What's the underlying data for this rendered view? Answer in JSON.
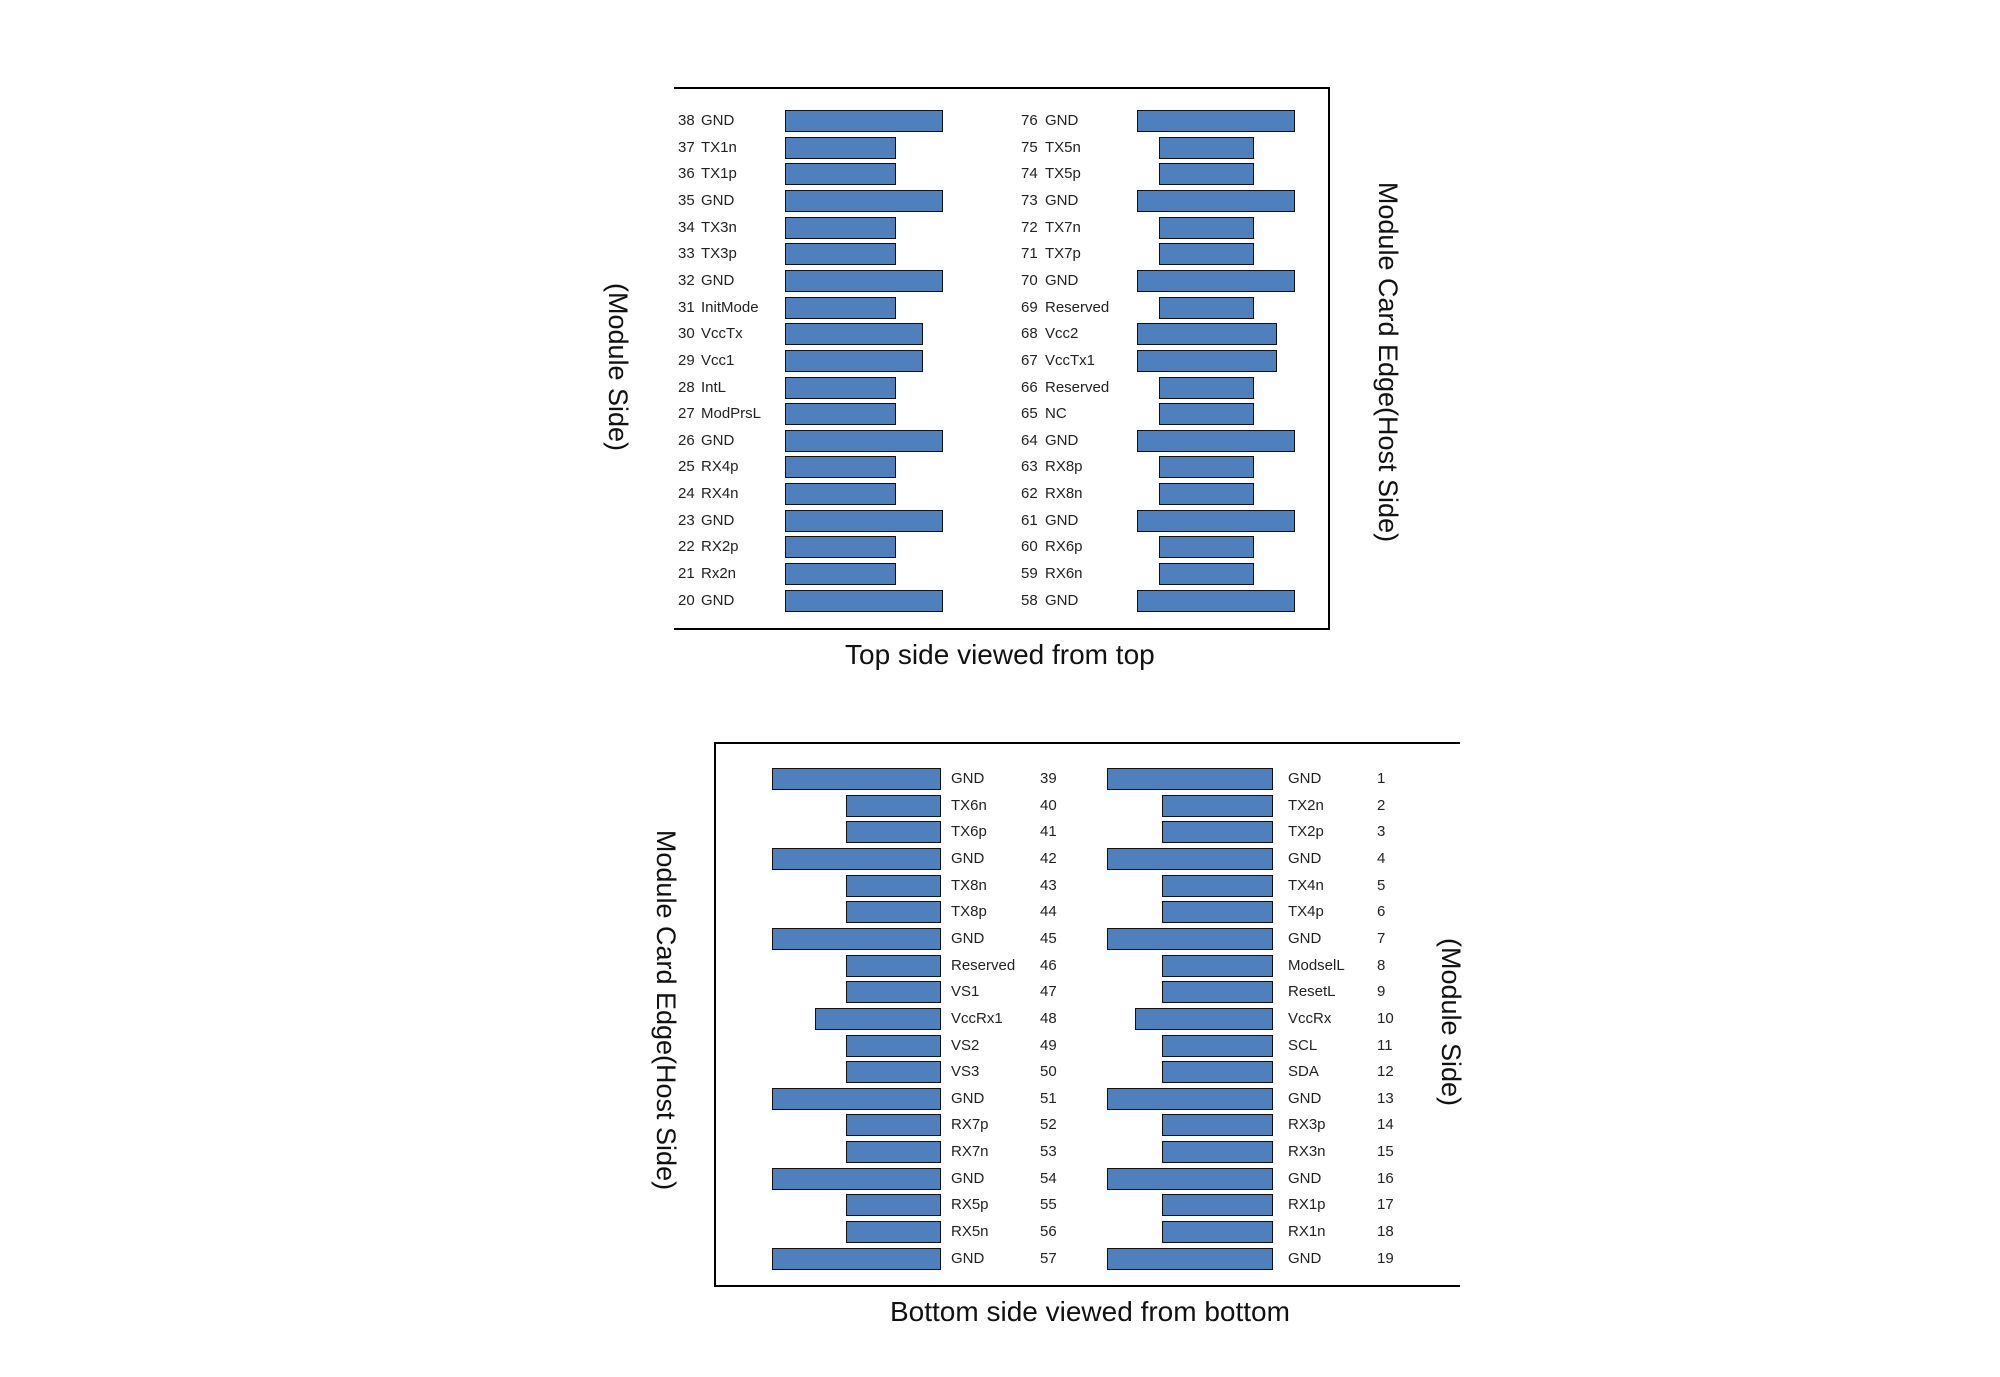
{
  "top": {
    "caption": "Top side viewed from top",
    "left_label": "(Module Side)",
    "right_label": "Module Card Edge(Host Side)",
    "left_pins": [
      {
        "num": "38",
        "name": "GND",
        "type": "long"
      },
      {
        "num": "37",
        "name": "TX1n",
        "type": "short"
      },
      {
        "num": "36",
        "name": "TX1p",
        "type": "short"
      },
      {
        "num": "35",
        "name": "GND",
        "type": "long"
      },
      {
        "num": "34",
        "name": "TX3n",
        "type": "short"
      },
      {
        "num": "33",
        "name": "TX3p",
        "type": "short"
      },
      {
        "num": "32",
        "name": "GND",
        "type": "long"
      },
      {
        "num": "31",
        "name": "InitMode",
        "type": "short"
      },
      {
        "num": "30",
        "name": "VccTx",
        "type": "mid"
      },
      {
        "num": "29",
        "name": "Vcc1",
        "type": "mid"
      },
      {
        "num": "28",
        "name": "IntL",
        "type": "short"
      },
      {
        "num": "27",
        "name": "ModPrsL",
        "type": "short"
      },
      {
        "num": "26",
        "name": "GND",
        "type": "long"
      },
      {
        "num": "25",
        "name": "RX4p",
        "type": "short"
      },
      {
        "num": "24",
        "name": "RX4n",
        "type": "short"
      },
      {
        "num": "23",
        "name": "GND",
        "type": "long"
      },
      {
        "num": "22",
        "name": "RX2p",
        "type": "short"
      },
      {
        "num": "21",
        "name": "Rx2n",
        "type": "short"
      },
      {
        "num": "20",
        "name": "GND",
        "type": "long"
      }
    ],
    "right_pins": [
      {
        "num": "76",
        "name": "GND",
        "type": "long"
      },
      {
        "num": "75",
        "name": "TX5n",
        "type": "short"
      },
      {
        "num": "74",
        "name": "TX5p",
        "type": "short"
      },
      {
        "num": "73",
        "name": "GND",
        "type": "long"
      },
      {
        "num": "72",
        "name": "TX7n",
        "type": "short"
      },
      {
        "num": "71",
        "name": "TX7p",
        "type": "short"
      },
      {
        "num": "70",
        "name": "GND",
        "type": "long"
      },
      {
        "num": "69",
        "name": "Reserved",
        "type": "short"
      },
      {
        "num": "68",
        "name": "Vcc2",
        "type": "mid"
      },
      {
        "num": "67",
        "name": "VccTx1",
        "type": "mid"
      },
      {
        "num": "66",
        "name": "Reserved",
        "type": "short"
      },
      {
        "num": "65",
        "name": "NC",
        "type": "short"
      },
      {
        "num": "64",
        "name": "GND",
        "type": "long"
      },
      {
        "num": "63",
        "name": "RX8p",
        "type": "short"
      },
      {
        "num": "62",
        "name": "RX8n",
        "type": "short"
      },
      {
        "num": "61",
        "name": "GND",
        "type": "long"
      },
      {
        "num": "60",
        "name": "RX6p",
        "type": "short"
      },
      {
        "num": "59",
        "name": "RX6n",
        "type": "short"
      },
      {
        "num": "58",
        "name": "GND",
        "type": "long"
      }
    ]
  },
  "bottom": {
    "caption": "Bottom side viewed from bottom",
    "left_label": "Module Card Edge(Host Side)",
    "right_label": "(Module Side)",
    "left_pins": [
      {
        "num": "39",
        "name": "GND",
        "type": "long"
      },
      {
        "num": "40",
        "name": "TX6n",
        "type": "short"
      },
      {
        "num": "41",
        "name": "TX6p",
        "type": "short"
      },
      {
        "num": "42",
        "name": "GND",
        "type": "long"
      },
      {
        "num": "43",
        "name": "TX8n",
        "type": "short"
      },
      {
        "num": "44",
        "name": "TX8p",
        "type": "short"
      },
      {
        "num": "45",
        "name": "GND",
        "type": "long"
      },
      {
        "num": "46",
        "name": "Reserved",
        "type": "short"
      },
      {
        "num": "47",
        "name": "VS1",
        "type": "short"
      },
      {
        "num": "48",
        "name": "VccRx1",
        "type": "mid"
      },
      {
        "num": "49",
        "name": "VS2",
        "type": "short"
      },
      {
        "num": "50",
        "name": "VS3",
        "type": "short"
      },
      {
        "num": "51",
        "name": "GND",
        "type": "long"
      },
      {
        "num": "52",
        "name": "RX7p",
        "type": "short"
      },
      {
        "num": "53",
        "name": "RX7n",
        "type": "short"
      },
      {
        "num": "54",
        "name": "GND",
        "type": "long"
      },
      {
        "num": "55",
        "name": "RX5p",
        "type": "short"
      },
      {
        "num": "56",
        "name": "RX5n",
        "type": "short"
      },
      {
        "num": "57",
        "name": "GND",
        "type": "long"
      }
    ],
    "right_pins": [
      {
        "num": "1",
        "name": "GND",
        "type": "long"
      },
      {
        "num": "2",
        "name": "TX2n",
        "type": "short"
      },
      {
        "num": "3",
        "name": "TX2p",
        "type": "short"
      },
      {
        "num": "4",
        "name": "GND",
        "type": "long"
      },
      {
        "num": "5",
        "name": "TX4n",
        "type": "short"
      },
      {
        "num": "6",
        "name": "TX4p",
        "type": "short"
      },
      {
        "num": "7",
        "name": "GND",
        "type": "long"
      },
      {
        "num": "8",
        "name": "ModselL",
        "type": "short"
      },
      {
        "num": "9",
        "name": "ResetL",
        "type": "short"
      },
      {
        "num": "10",
        "name": "VccRx",
        "type": "mid"
      },
      {
        "num": "11",
        "name": "SCL",
        "type": "short"
      },
      {
        "num": "12",
        "name": "SDA",
        "type": "short"
      },
      {
        "num": "13",
        "name": "GND",
        "type": "long"
      },
      {
        "num": "14",
        "name": "RX3p",
        "type": "short"
      },
      {
        "num": "15",
        "name": "RX3n",
        "type": "short"
      },
      {
        "num": "16",
        "name": "GND",
        "type": "long"
      },
      {
        "num": "17",
        "name": "RX1p",
        "type": "short"
      },
      {
        "num": "18",
        "name": "RX1n",
        "type": "short"
      },
      {
        "num": "19",
        "name": "GND",
        "type": "long"
      }
    ]
  },
  "colors": {
    "pin_fill": "#4f80bd",
    "pin_border": "#111111"
  }
}
